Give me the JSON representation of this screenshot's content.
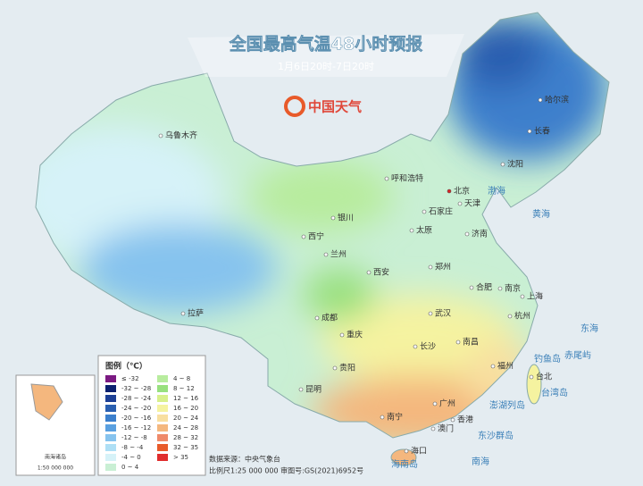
{
  "header": {
    "title": "全国最高气温48小时预报",
    "subtitle": "1月6日20时-7日20时"
  },
  "logo": "中国天气",
  "cities": [
    "乌鲁木齐",
    "哈尔滨",
    "长春",
    "沈阳",
    "北京",
    "天津",
    "呼和浩特",
    "石家庄",
    "银川",
    "太原",
    "济南",
    "西宁",
    "兰州",
    "郑州",
    "西安",
    "合肥",
    "南京",
    "上海",
    "拉萨",
    "成都",
    "武汉",
    "杭州",
    "重庆",
    "长沙",
    "南昌",
    "福州",
    "贵阳",
    "台北",
    "昆明",
    "广州",
    "南宁",
    "香港",
    "澳门",
    "海口"
  ],
  "seas": [
    "渤海",
    "黄海",
    "东海",
    "南海",
    "钓鱼岛",
    "赤尾屿",
    "台湾岛",
    "澎湖列岛",
    "东沙群岛",
    "海南岛"
  ],
  "legend": {
    "title": "图例（℃）",
    "items": [
      {
        "label": "≤ -32",
        "color": "#7b1a82"
      },
      {
        "label": "-32 ~ -28",
        "color": "#0c2170"
      },
      {
        "label": "-28 ~ -24",
        "color": "#1d3f95"
      },
      {
        "label": "-24 ~ -20",
        "color": "#2a5fb0"
      },
      {
        "label": "-20 ~ -16",
        "color": "#3c7fcc"
      },
      {
        "label": "-16 ~ -12",
        "color": "#5aa0e0"
      },
      {
        "label": "-12 ~ -8",
        "color": "#86c3ee"
      },
      {
        "label": "-8 ~ -4",
        "color": "#aedff5"
      },
      {
        "label": "-4 ~ 0",
        "color": "#d6f2f8"
      },
      {
        "label": "0 ~ 4",
        "color": "#c9efd4"
      },
      {
        "label": "4 ~ 8",
        "color": "#b8ec9e"
      },
      {
        "label": "8 ~ 12",
        "color": "#98e07e"
      },
      {
        "label": "12 ~ 16",
        "color": "#d8f08c"
      },
      {
        "label": "16 ~ 20",
        "color": "#f5f3a0"
      },
      {
        "label": "20 ~ 24",
        "color": "#f8dfa0"
      },
      {
        "label": "24 ~ 28",
        "color": "#f4b77e"
      },
      {
        "label": "28 ~ 32",
        "color": "#ef8a6a"
      },
      {
        "label": "32 ~ 35",
        "color": "#e85a2a"
      },
      {
        "label": "> 35",
        "color": "#e02d2d"
      }
    ]
  },
  "source": [
    "数据来源：中央气象台",
    "比例尺1:25 000 000 审图号:GS(2021)6952号"
  ],
  "inset": {
    "title": "南海诸岛",
    "scale": "1:50 000 000"
  }
}
